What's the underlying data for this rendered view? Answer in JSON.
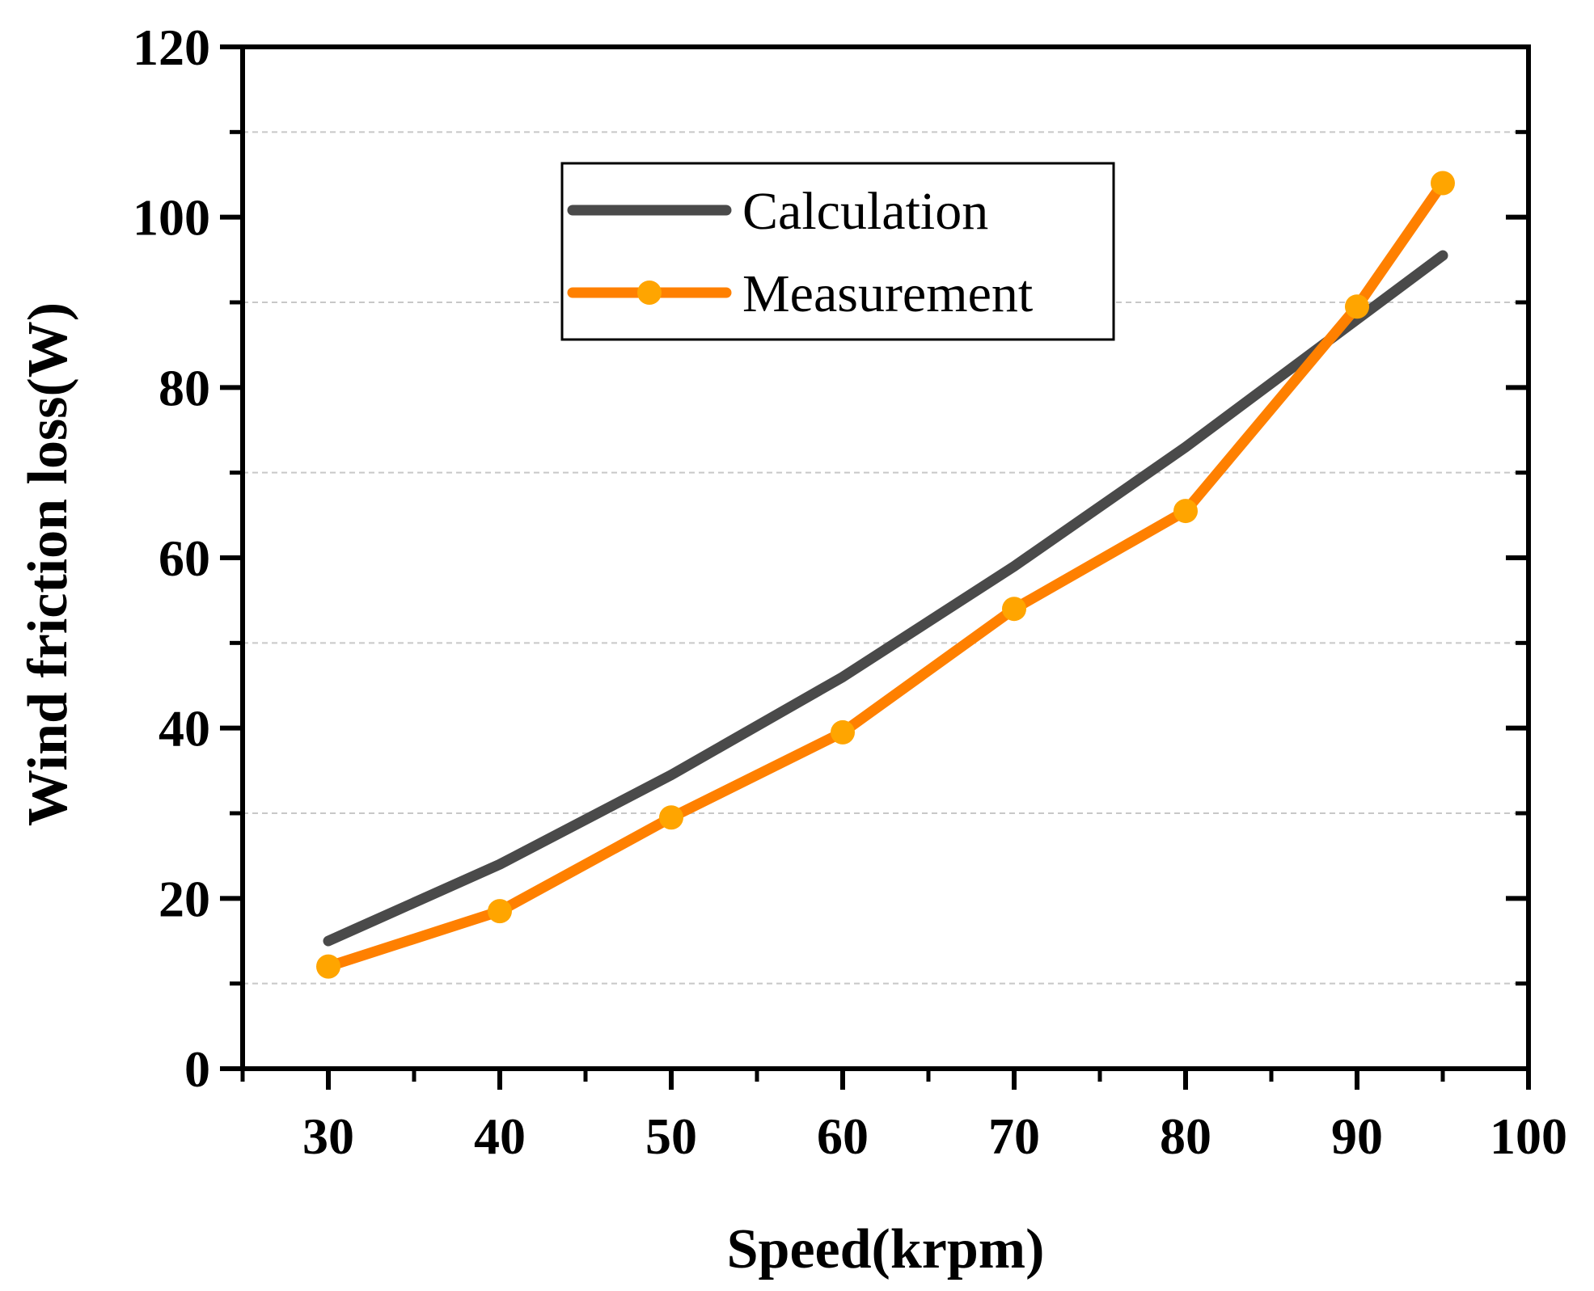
{
  "chart_data": {
    "type": "line",
    "xlabel": "Speed(krpm)",
    "ylabel": "Wind friction loss(W)",
    "xlim": [
      25,
      100
    ],
    "ylim": [
      0,
      120
    ],
    "x_ticks": [
      30,
      40,
      50,
      60,
      70,
      80,
      90,
      100
    ],
    "y_ticks": [
      0,
      20,
      40,
      60,
      80,
      100,
      120
    ],
    "grid": "horizontal dashed at minor ticks (10, 30, 50, 70, 90, 110)",
    "legend_position": "top-center",
    "series": [
      {
        "name": "Calculation",
        "color": "#4a4a4a",
        "marker": "none",
        "x": [
          30,
          40,
          50,
          60,
          70,
          80,
          90,
          95
        ],
        "y": [
          15,
          24,
          34.5,
          46,
          59,
          73,
          88,
          95.5
        ]
      },
      {
        "name": "Measurement",
        "color": "#ff8000",
        "marker_color": "#ffa500",
        "marker": "circle",
        "x": [
          30,
          40,
          50,
          60,
          70,
          80,
          90,
          95
        ],
        "y": [
          12,
          18.5,
          29.5,
          39.5,
          54,
          65.5,
          89.5,
          104
        ]
      }
    ]
  }
}
